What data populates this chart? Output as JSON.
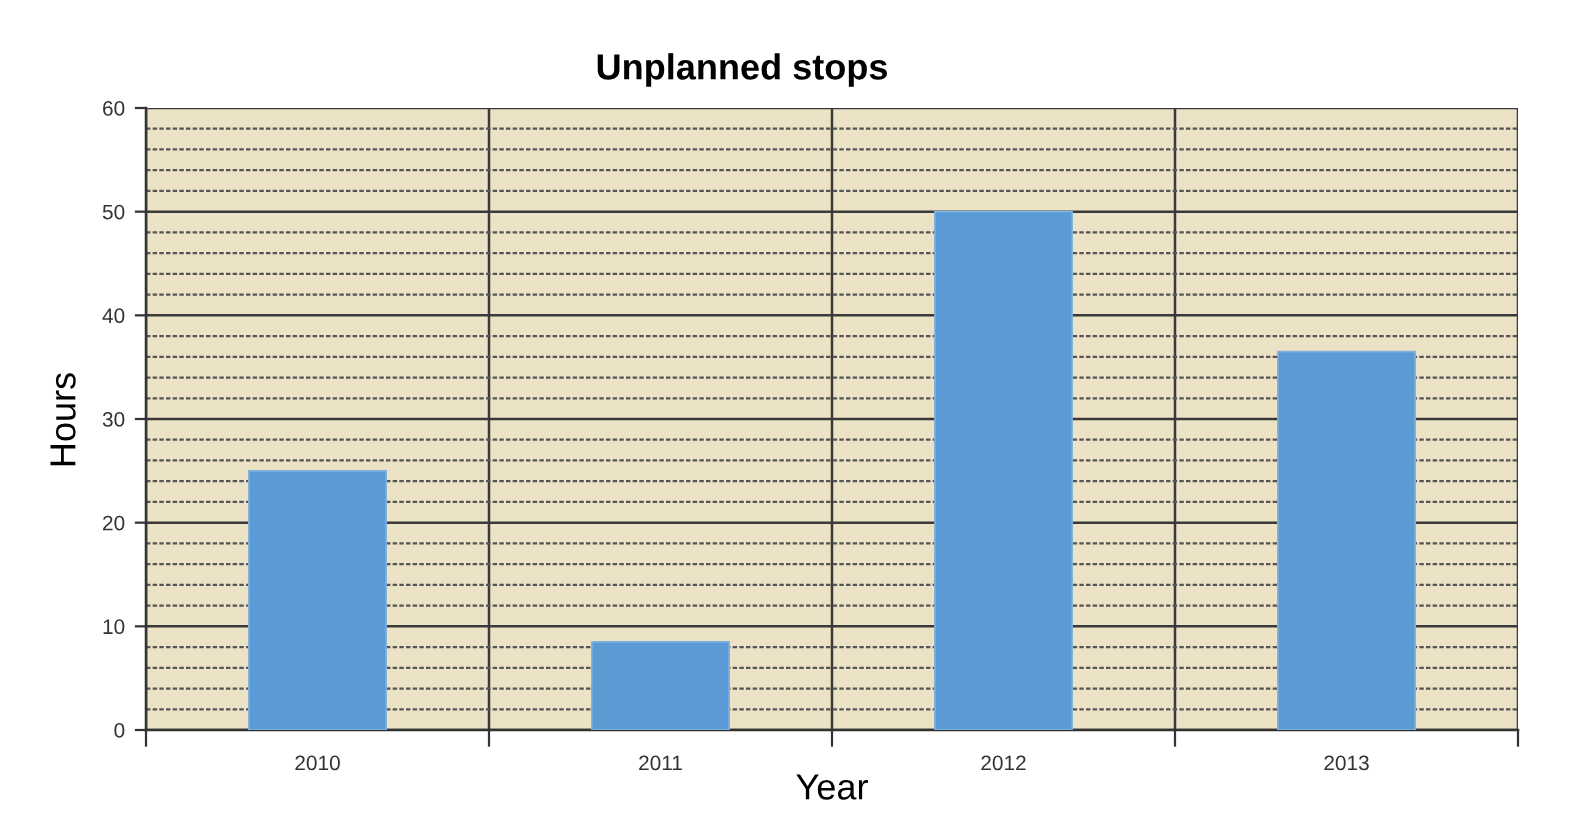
{
  "chart_data": {
    "type": "bar",
    "title": "Unplanned stops",
    "xlabel": "Year",
    "ylabel": "Hours",
    "categories": [
      "2010",
      "2011",
      "2012",
      "2013"
    ],
    "values": [
      25,
      8.5,
      50,
      36.5
    ],
    "color": "#5b9bd5",
    "ylim": [
      0,
      60
    ],
    "yticks": [
      0,
      {
        "value": 2,
        "label": null
      },
      {
        "value": 4,
        "label": null
      },
      {
        "value": 6,
        "label": null
      },
      {
        "value": 8,
        "label": null
      },
      10,
      {
        "value": 12,
        "label": null
      },
      {
        "value": 14,
        "label": null
      },
      {
        "value": 16,
        "label": null
      },
      {
        "value": 18,
        "label": null
      },
      20,
      {
        "value": 22,
        "label": null
      },
      {
        "value": 24,
        "label": null
      },
      {
        "value": 26,
        "label": null
      },
      {
        "value": 28,
        "label": null
      },
      30,
      {
        "value": 32,
        "label": null
      },
      {
        "value": 34,
        "label": null
      },
      {
        "value": 36,
        "label": null
      },
      {
        "value": 38,
        "label": null
      },
      40,
      {
        "value": 42,
        "label": null
      },
      {
        "value": 44,
        "label": null
      },
      {
        "value": 46,
        "label": null
      },
      {
        "value": 48,
        "label": null
      },
      50,
      {
        "value": 52,
        "label": null
      },
      {
        "value": 54,
        "label": null
      },
      {
        "value": 56,
        "label": null
      },
      {
        "value": 58,
        "label": null
      },
      60
    ],
    "grid": true
  }
}
